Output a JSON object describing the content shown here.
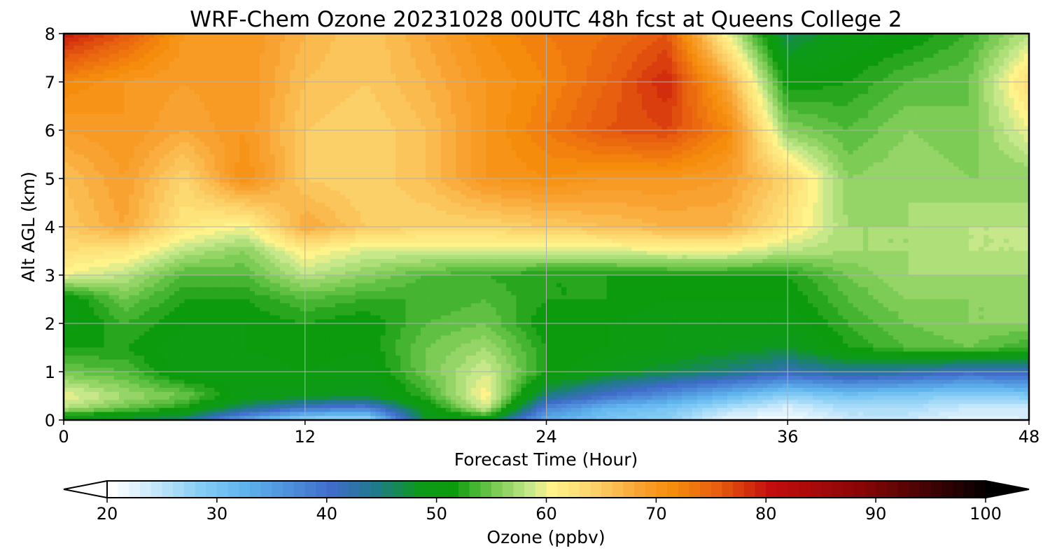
{
  "chart_data": {
    "type": "heatmap",
    "title": "WRF-Chem Ozone  20231028 00UTC 48h fcst at Queens College 2",
    "xlabel": "Forecast Time (Hour)",
    "ylabel": "Alt AGL (km)",
    "xlim": [
      0,
      48
    ],
    "ylim": [
      0,
      8
    ],
    "xticks": [
      "0",
      "12",
      "24",
      "36",
      "48"
    ],
    "yticks": [
      "0",
      "1",
      "2",
      "3",
      "4",
      "5",
      "6",
      "7",
      "8"
    ],
    "grid": true,
    "colorbar": {
      "label": "Ozone  (ppbv)",
      "range": [
        20,
        100
      ],
      "ticks": [
        "20",
        "30",
        "40",
        "50",
        "60",
        "70",
        "80",
        "90",
        "100"
      ],
      "extend": "both",
      "stops": [
        {
          "v": 20,
          "c": "#ffffff"
        },
        {
          "v": 28,
          "c": "#86cdf5"
        },
        {
          "v": 32,
          "c": "#5fb4ee"
        },
        {
          "v": 40,
          "c": "#3f6cc9"
        },
        {
          "v": 44,
          "c": "#1f7a8a"
        },
        {
          "v": 48,
          "c": "#0d9a1a"
        },
        {
          "v": 51,
          "c": "#0c9b0c"
        },
        {
          "v": 55,
          "c": "#7ccc55"
        },
        {
          "v": 58,
          "c": "#c7e88a"
        },
        {
          "v": 60,
          "c": "#fff38a"
        },
        {
          "v": 64,
          "c": "#fcd069"
        },
        {
          "v": 68,
          "c": "#f8a331"
        },
        {
          "v": 71,
          "c": "#f68c0c"
        },
        {
          "v": 75,
          "c": "#e85f10"
        },
        {
          "v": 80,
          "c": "#c40d0d"
        },
        {
          "v": 88,
          "c": "#8a0606"
        },
        {
          "v": 95,
          "c": "#3a0303"
        },
        {
          "v": 100,
          "c": "#000000"
        }
      ]
    },
    "grid_data": {
      "hours": [
        0,
        3,
        6,
        9,
        12,
        15,
        18,
        21,
        24,
        27,
        30,
        33,
        36,
        39,
        42,
        45,
        48
      ],
      "altitudes_km": [
        0,
        0.25,
        0.5,
        1,
        1.5,
        2,
        2.5,
        3,
        3.5,
        4,
        5,
        6,
        7,
        8
      ],
      "ozone_ppbv": [
        [
          48,
          47,
          45,
          34,
          27,
          26,
          48,
          50,
          33,
          30,
          28,
          22,
          21,
          24,
          24,
          22,
          23
        ],
        [
          58,
          55,
          52,
          45,
          40,
          38,
          50,
          59,
          38,
          32,
          30,
          26,
          23,
          26,
          26,
          24,
          24
        ],
        [
          60,
          57,
          55,
          50,
          49,
          48,
          53,
          61,
          45,
          40,
          36,
          32,
          28,
          30,
          29,
          28,
          29
        ],
        [
          55,
          54,
          50,
          50,
          51,
          50,
          55,
          59,
          52,
          49,
          47,
          45,
          42,
          44,
          43,
          41,
          42
        ],
        [
          52,
          52,
          50,
          51,
          52,
          51,
          55,
          57,
          52,
          51,
          50,
          49,
          48,
          52,
          54,
          55,
          53
        ],
        [
          50,
          53,
          51,
          51,
          52,
          51,
          54,
          55,
          51,
          51,
          50,
          50,
          50,
          53,
          55,
          56,
          56
        ],
        [
          50,
          55,
          52,
          52,
          54,
          53,
          53,
          54,
          52,
          52,
          51,
          51,
          51,
          54,
          56,
          56,
          56
        ],
        [
          60,
          58,
          54,
          54,
          58,
          56,
          54,
          53,
          52,
          52,
          52,
          52,
          52,
          55,
          57,
          57,
          57
        ],
        [
          63,
          62,
          58,
          56,
          61,
          59,
          59,
          59,
          59,
          59,
          60,
          60,
          58,
          57,
          57,
          58,
          58
        ],
        [
          65,
          68,
          62,
          60,
          68,
          65,
          64,
          64,
          65,
          66,
          67,
          67,
          62,
          57,
          57,
          58,
          58
        ],
        [
          66,
          69,
          64,
          71,
          65,
          64,
          66,
          70,
          71,
          70,
          70,
          69,
          64,
          56,
          57,
          56,
          56
        ],
        [
          69,
          70,
          68,
          70,
          65,
          64,
          66,
          70,
          73,
          76,
          77,
          72,
          56,
          54,
          56,
          55,
          60
        ],
        [
          72,
          70,
          69,
          70,
          66,
          65,
          67,
          70,
          72,
          75,
          79,
          68,
          51,
          52,
          54,
          55,
          63
        ],
        [
          80,
          76,
          70,
          70,
          67,
          65,
          68,
          71,
          73,
          74,
          76,
          60,
          46,
          50,
          51,
          53,
          58
        ]
      ]
    }
  }
}
